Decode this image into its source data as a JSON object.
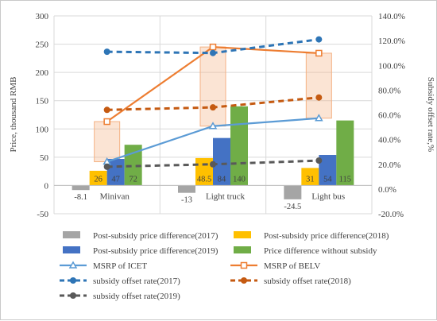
{
  "chart_data": {
    "type": "bar",
    "categories": [
      "Minivan",
      "Light truck",
      "Light bus"
    ],
    "ylabel_left": "Price, thousand RMB",
    "ylabel_right": "Subsidy offset rate,%",
    "ylim_left": [
      -50,
      300
    ],
    "ylim_right": [
      -20,
      140
    ],
    "yticks_left": [
      "-50",
      "0",
      "50",
      "100",
      "150",
      "200",
      "250",
      "300"
    ],
    "yticks_right": [
      "-20.0%",
      "0.0%",
      "20.0%",
      "40.0%",
      "60.0%",
      "80.0%",
      "100.0%",
      "120.0%",
      "140.0%"
    ],
    "bar_series": [
      {
        "name": "Post-subsidy price difference(2017)",
        "color": "#a5a5a5",
        "values": [
          -8.1,
          -13,
          -24.5
        ],
        "labels": [
          "-8.1",
          "-13",
          "-24.5"
        ]
      },
      {
        "name": "Post-subsidy price difference(2018)",
        "color": "#ffc000",
        "values": [
          26,
          48.5,
          31
        ],
        "labels": [
          "26",
          "48.5",
          "31"
        ]
      },
      {
        "name": "Post-subsidy price difference(2019)",
        "color": "#4472c4",
        "values": [
          47,
          84,
          54
        ],
        "labels": [
          "47",
          "84",
          "54"
        ]
      },
      {
        "name": "Price difference without subsidy",
        "color": "#70ad47",
        "values": [
          72,
          140,
          115
        ],
        "labels": [
          "72",
          "140",
          "115"
        ]
      }
    ],
    "line_series": [
      {
        "name": "MSRP of ICET",
        "color": "#5b9bd5",
        "marker": "triangle",
        "axis": "left",
        "values": [
          42,
          105,
          119
        ]
      },
      {
        "name": "MSRP of BELV",
        "color": "#ed7d31",
        "marker": "square",
        "axis": "left",
        "values": [
          113,
          245,
          234
        ]
      },
      {
        "name": "subsidy offset rate(2017)",
        "color": "#2e75b6",
        "marker": "circle",
        "dashed": true,
        "axis": "right",
        "values": [
          111,
          110,
          121
        ]
      },
      {
        "name": "subsidy offset rate(2018)",
        "color": "#c55a11",
        "marker": "circle",
        "dashed": true,
        "axis": "right",
        "values": [
          64,
          66,
          74
        ]
      },
      {
        "name": "subsidy offset rate(2019)",
        "color": "#595959",
        "marker": "circle",
        "dashed": true,
        "axis": "right",
        "values": [
          18,
          20,
          23
        ]
      }
    ],
    "range_box_color": "#f4b183",
    "grid": true,
    "legend_position": "bottom"
  }
}
